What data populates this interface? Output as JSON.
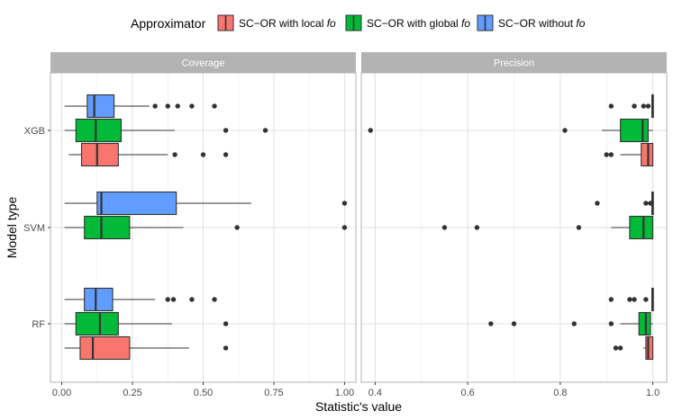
{
  "chart_data": {
    "type": "boxplot",
    "legend": {
      "title": "Approximator",
      "position": "top",
      "entries": [
        {
          "key": "local",
          "label": "SC−OR with local ",
          "suffix": "fo",
          "color": "#F8766D"
        },
        {
          "key": "global",
          "label": "SC−OR with global ",
          "suffix": "fo",
          "color": "#00BA38"
        },
        {
          "key": "without",
          "label": "SC−OR without ",
          "suffix": "fo",
          "color": "#619CFF"
        }
      ]
    },
    "xlabel": "Statistic's value",
    "ylabel": "Model type",
    "categories": [
      "XGB",
      "SVM",
      "RF"
    ],
    "panels": [
      {
        "title": "Coverage",
        "xlim": [
          -0.04,
          1.04
        ],
        "xticks": [
          0.0,
          0.25,
          0.5,
          0.75,
          1.0
        ],
        "xtick_labels": [
          "0.00",
          "0.25",
          "0.50",
          "0.75",
          "1.00"
        ],
        "boxes": [
          {
            "model": "XGB",
            "approximator": "without",
            "whisker_low": 0.01,
            "q1": 0.09,
            "median": 0.115,
            "q3": 0.185,
            "whisker_high": 0.31,
            "outliers": [
              0.33,
              0.375,
              0.41,
              0.46,
              0.54
            ]
          },
          {
            "model": "XGB",
            "approximator": "global",
            "whisker_low": 0.01,
            "q1": 0.05,
            "median": 0.12,
            "q3": 0.21,
            "whisker_high": 0.4,
            "outliers": [
              0.58,
              0.72
            ]
          },
          {
            "model": "XGB",
            "approximator": "local",
            "whisker_low": 0.025,
            "q1": 0.07,
            "median": 0.125,
            "q3": 0.2,
            "whisker_high": 0.375,
            "outliers": [
              0.4,
              0.5,
              0.58
            ]
          },
          {
            "model": "SVM",
            "approximator": "without",
            "whisker_low": 0.01,
            "q1": 0.125,
            "median": 0.14,
            "q3": 0.405,
            "whisker_high": 0.67,
            "outliers": [
              1.0
            ]
          },
          {
            "model": "SVM",
            "approximator": "global",
            "whisker_low": 0.01,
            "q1": 0.08,
            "median": 0.14,
            "q3": 0.24,
            "whisker_high": 0.43,
            "outliers": [
              0.62,
              1.0
            ]
          },
          {
            "model": "RF",
            "approximator": "without",
            "whisker_low": 0.01,
            "q1": 0.08,
            "median": 0.12,
            "q3": 0.18,
            "whisker_high": 0.33,
            "outliers": [
              0.375,
              0.395,
              0.46,
              0.54
            ]
          },
          {
            "model": "RF",
            "approximator": "global",
            "whisker_low": 0.01,
            "q1": 0.05,
            "median": 0.135,
            "q3": 0.2,
            "whisker_high": 0.39,
            "outliers": [
              0.58
            ]
          },
          {
            "model": "RF",
            "approximator": "local",
            "whisker_low": 0.01,
            "q1": 0.065,
            "median": 0.11,
            "q3": 0.24,
            "whisker_high": 0.45,
            "outliers": [
              0.58
            ]
          }
        ]
      },
      {
        "title": "Precision",
        "xlim": [
          0.37,
          1.03
        ],
        "xticks": [
          0.4,
          0.6,
          0.8,
          1.0
        ],
        "xtick_labels": [
          "0.4",
          "0.6",
          "0.8",
          "1.0"
        ],
        "boxes": [
          {
            "model": "XGB",
            "approximator": "without",
            "whisker_low": 0.998,
            "q1": 0.998,
            "median": 1.0,
            "q3": 1.0,
            "whisker_high": 1.0,
            "outliers": [
              0.91,
              0.96,
              0.98,
              0.99
            ]
          },
          {
            "model": "XGB",
            "approximator": "global",
            "whisker_low": 0.89,
            "q1": 0.93,
            "median": 0.978,
            "q3": 0.99,
            "whisker_high": 1.0,
            "outliers": [
              0.39,
              0.81
            ]
          },
          {
            "model": "XGB",
            "approximator": "local",
            "whisker_low": 0.93,
            "q1": 0.975,
            "median": 0.99,
            "q3": 1.0,
            "whisker_high": 1.0,
            "outliers": [
              0.9,
              0.91
            ]
          },
          {
            "model": "SVM",
            "approximator": "without",
            "whisker_low": 0.998,
            "q1": 0.998,
            "median": 1.0,
            "q3": 1.0,
            "whisker_high": 1.0,
            "outliers": [
              0.88,
              0.985,
              0.995
            ]
          },
          {
            "model": "SVM",
            "approximator": "global",
            "whisker_low": 0.91,
            "q1": 0.95,
            "median": 0.98,
            "q3": 1.0,
            "whisker_high": 1.0,
            "outliers": [
              0.55,
              0.62,
              0.84
            ]
          },
          {
            "model": "RF",
            "approximator": "without",
            "whisker_low": 0.998,
            "q1": 0.998,
            "median": 1.0,
            "q3": 1.0,
            "whisker_high": 1.0,
            "outliers": [
              0.91,
              0.95,
              0.96,
              0.985
            ]
          },
          {
            "model": "RF",
            "approximator": "global",
            "whisker_low": 0.93,
            "q1": 0.97,
            "median": 0.985,
            "q3": 0.995,
            "whisker_high": 1.0,
            "outliers": [
              0.65,
              0.7,
              0.83,
              0.91
            ]
          },
          {
            "model": "RF",
            "approximator": "local",
            "whisker_low": 0.98,
            "q1": 0.985,
            "median": 0.99,
            "q3": 1.0,
            "whisker_high": 1.0,
            "outliers": [
              0.92,
              0.93
            ]
          }
        ]
      }
    ]
  }
}
